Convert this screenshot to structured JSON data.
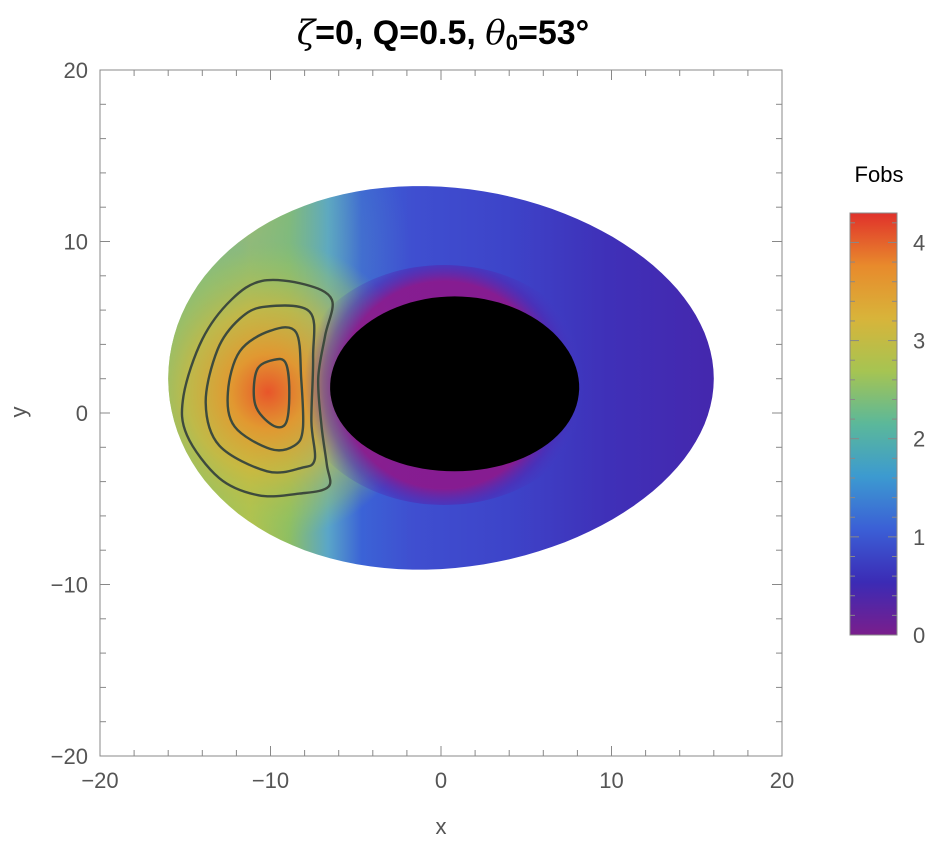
{
  "chart_data": {
    "type": "heatmap",
    "title": {
      "zeta_symbol": "ζ",
      "zeta_value": "=0, Q=0.5, ",
      "theta_symbol": "θ",
      "theta_sub": "0",
      "theta_value": "=53°"
    },
    "xlabel": "x",
    "ylabel": "y",
    "xlim": [
      -20,
      20
    ],
    "ylim": [
      -20,
      20
    ],
    "x_ticks": [
      -20,
      -10,
      0,
      10,
      20
    ],
    "y_ticks": [
      -20,
      -10,
      0,
      10,
      20
    ],
    "x_tick_labels": [
      "−20",
      "−10",
      "0",
      "10",
      "20"
    ],
    "y_tick_labels": [
      "−20",
      "−10",
      "0",
      "10",
      "20"
    ],
    "grid": false,
    "disk": {
      "outer": {
        "cx": 0,
        "cy": 2,
        "rx_left": 16,
        "rx_right": 16,
        "y_top": 13.2,
        "y_bottom": -9.1
      },
      "inner_shadow": {
        "cx": 0.8,
        "cy": 1.6,
        "rx": 7.3,
        "y_top": 6.8,
        "y_bottom": -3.4
      }
    },
    "peak": {
      "x": -10,
      "y": 1.2,
      "value": 4.3
    },
    "contours": [
      {
        "level": 3.9,
        "points": [
          [
            -9.8,
            3.1
          ],
          [
            -9.1,
            2.9
          ],
          [
            -8.9,
            1.2
          ],
          [
            -9.1,
            -0.6
          ],
          [
            -9.9,
            -0.7
          ],
          [
            -10.9,
            0.5
          ],
          [
            -10.8,
            2.5
          ]
        ]
      },
      {
        "level": 3.5,
        "points": [
          [
            -10.0,
            4.8
          ],
          [
            -8.5,
            4.7
          ],
          [
            -8.2,
            2.0
          ],
          [
            -8.1,
            -0.9
          ],
          [
            -8.6,
            -1.9
          ],
          [
            -10.0,
            -2.1
          ],
          [
            -12.1,
            -0.8
          ],
          [
            -12.5,
            1.2
          ],
          [
            -11.8,
            3.6
          ]
        ]
      },
      {
        "level": 3.0,
        "points": [
          [
            -10.3,
            6.2
          ],
          [
            -7.7,
            5.9
          ],
          [
            -7.5,
            3.2
          ],
          [
            -7.6,
            -0.5
          ],
          [
            -7.4,
            -2.7
          ],
          [
            -8.2,
            -3.2
          ],
          [
            -10.2,
            -3.4
          ],
          [
            -13.0,
            -1.9
          ],
          [
            -13.8,
            0.6
          ],
          [
            -13.1,
            3.7
          ],
          [
            -11.8,
            5.5
          ]
        ]
      },
      {
        "level": 2.5,
        "points": [
          [
            -10.5,
            7.7
          ],
          [
            -8.0,
            7.5
          ],
          [
            -6.4,
            6.6
          ],
          [
            -6.8,
            4.5
          ],
          [
            -7.2,
            2.0
          ],
          [
            -7.0,
            -0.8
          ],
          [
            -6.7,
            -3.0
          ],
          [
            -6.6,
            -4.3
          ],
          [
            -8.3,
            -4.7
          ],
          [
            -10.7,
            -4.8
          ],
          [
            -13.0,
            -3.8
          ],
          [
            -14.9,
            -1.3
          ],
          [
            -15.1,
            1.0
          ],
          [
            -14.0,
            4.3
          ],
          [
            -12.3,
            6.6
          ]
        ]
      }
    ],
    "colorbar": {
      "title": "Fobs",
      "min": 0,
      "max": 4.3,
      "ticks": [
        0,
        1,
        2,
        3,
        4
      ],
      "tick_labels": [
        "0",
        "1",
        "2",
        "3",
        "4"
      ],
      "colors": [
        "#7a1e8c",
        "#3b2bb5",
        "#3b5fd6",
        "#3c9ad0",
        "#5bb89a",
        "#a6c452",
        "#d8b43a",
        "#e88a2c",
        "#e0312b"
      ]
    },
    "colors": {
      "shadow": "#000000",
      "contour": "#3d4a3d",
      "frame": "#888888"
    }
  }
}
